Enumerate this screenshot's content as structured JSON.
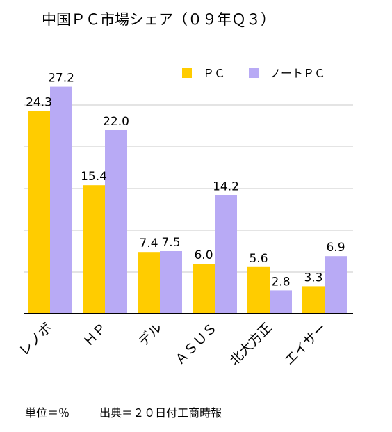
{
  "chart_data": {
    "type": "bar",
    "title": "中国ＰＣ市場シェア（０９年Ｑ３）",
    "categories": [
      "レノボ",
      "ＨＰ",
      "デル",
      "ＡＳＵＳ",
      "北大方正",
      "エイサー"
    ],
    "series": [
      {
        "name": "ＰＣ",
        "color": "#ffcc00",
        "values": [
          24.3,
          15.4,
          7.4,
          6.0,
          5.6,
          3.3
        ],
        "labels": [
          "24.3",
          "15.4",
          "7.4",
          "6.0",
          "5.6",
          "3.3"
        ]
      },
      {
        "name": "ノートＰＣ",
        "color": "#b8aaf5",
        "values": [
          27.2,
          22.0,
          7.5,
          14.2,
          2.8,
          6.9
        ],
        "labels": [
          "27.2",
          "22.0",
          "7.5",
          "14.2",
          "2.8",
          "6.9"
        ]
      }
    ],
    "ylim": [
      0,
      30
    ],
    "grid": true,
    "legend_position": "top-right"
  },
  "footnote": {
    "unit": "単位＝％",
    "source": "出典＝２０日付工商時報"
  }
}
